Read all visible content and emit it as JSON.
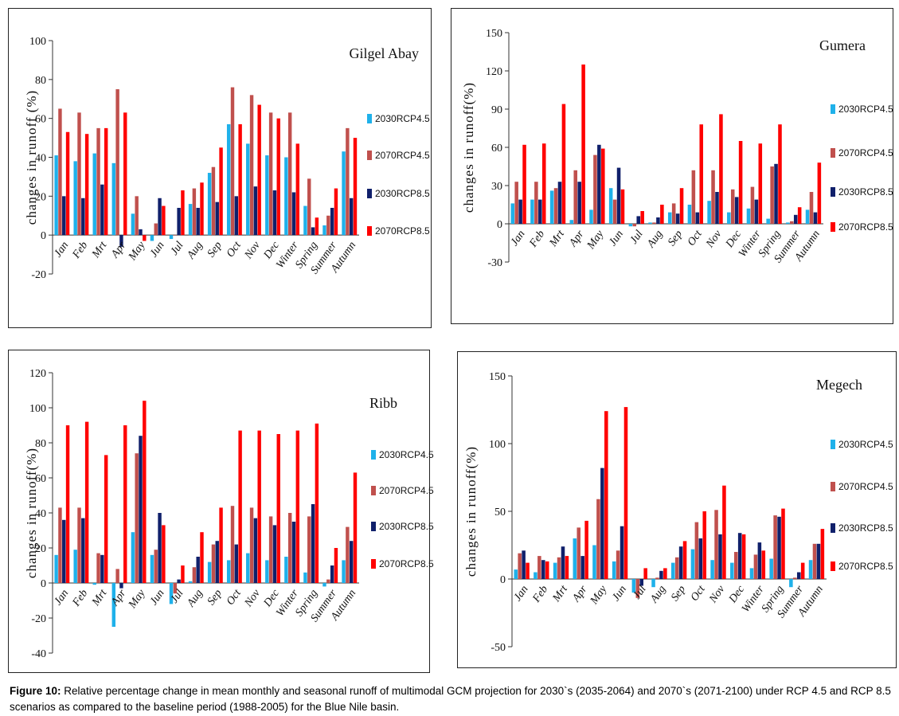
{
  "caption": {
    "label": "Figure 10:",
    "text": " Relative percentage change in mean monthly and seasonal runoff of multimodal GCM projection for 2030`s (2035-2064) and 2070`s (2071-2100) under RCP 4.5 and RCP 8.5 scenarios as compared to the baseline period (1988-2005) for the Blue Nile basin."
  },
  "colors": {
    "2030RCP4.5": "#1fb1ea",
    "2070RCP4.5": "#c0504d",
    "2030RCP8.5": "#10206b",
    "2070RCP8.5": "#ff0000"
  },
  "chart_data": [
    {
      "type": "bar",
      "title": "Gilgel Abay",
      "ylabel": "changes in runoff (%)",
      "ylim": [
        -20,
        100
      ],
      "yticks": [
        -20,
        0,
        20,
        40,
        60,
        80,
        100
      ],
      "categories": [
        "Jan",
        "Feb",
        "Mrt",
        "Apr",
        "May",
        "Jun",
        "Jul",
        "Aug",
        "Sep",
        "Oct",
        "Nov",
        "Dec",
        "Winter",
        "Spring",
        "Summer",
        "Autumn"
      ],
      "legend_position": "right",
      "series": [
        {
          "name": "2030RCP4.5",
          "values": [
            41,
            38,
            42,
            37,
            11,
            -3,
            -2,
            16,
            32,
            57,
            47,
            41,
            40,
            15,
            5,
            43
          ]
        },
        {
          "name": "2070RCP4.5",
          "values": [
            65,
            63,
            55,
            75,
            20,
            6,
            0,
            24,
            35,
            76,
            72,
            63,
            63,
            29,
            10,
            55
          ]
        },
        {
          "name": "2030RCP8.5",
          "values": [
            20,
            19,
            26,
            -6,
            3,
            19,
            14,
            14,
            17,
            20,
            25,
            23,
            22,
            4,
            14,
            19
          ]
        },
        {
          "name": "2070RCP8.5",
          "values": [
            53,
            52,
            55,
            63,
            -3,
            15,
            23,
            27,
            45,
            57,
            67,
            60,
            47,
            9,
            24,
            50
          ]
        }
      ]
    },
    {
      "type": "bar",
      "title": "Gumera",
      "ylabel": "changes in runoff(%)",
      "ylim": [
        -30,
        150
      ],
      "yticks": [
        -30,
        0,
        30,
        60,
        90,
        120,
        150
      ],
      "categories": [
        "Jan",
        "Feb",
        "Mrt",
        "Apr",
        "May",
        "Jun",
        "Jul",
        "Aug",
        "Sep",
        "Oct",
        "Nov",
        "Dec",
        "Winter",
        "Spring",
        "Summer",
        "Autumn"
      ],
      "legend_position": "right",
      "series": [
        {
          "name": "2030RCP4.5",
          "values": [
            16,
            19,
            26,
            3,
            11,
            28,
            -2,
            1,
            9,
            15,
            18,
            9,
            12,
            4,
            1,
            11
          ]
        },
        {
          "name": "2070RCP4.5",
          "values": [
            33,
            33,
            28,
            42,
            54,
            19,
            -2,
            1,
            16,
            42,
            42,
            27,
            29,
            45,
            2,
            25
          ]
        },
        {
          "name": "2030RCP8.5",
          "values": [
            19,
            19,
            33,
            33,
            62,
            44,
            6,
            5,
            8,
            9,
            25,
            21,
            19,
            47,
            7,
            9
          ]
        },
        {
          "name": "2070RCP8.5",
          "values": [
            62,
            63,
            94,
            125,
            59,
            27,
            10,
            15,
            28,
            78,
            86,
            65,
            63,
            78,
            13,
            48
          ]
        }
      ]
    },
    {
      "type": "bar",
      "title": "Ribb",
      "ylabel": "changes in runoff(%)",
      "ylim": [
        -40,
        120
      ],
      "yticks": [
        -40,
        -20,
        0,
        20,
        40,
        60,
        80,
        100,
        120
      ],
      "categories": [
        "Jan",
        "Feb",
        "Mrt",
        "Apr",
        "May",
        "Jun",
        "Jul",
        "Aug",
        "Sep",
        "Oct",
        "Nov",
        "Dec",
        "Winter",
        "Spring",
        "Summer",
        "Autumn"
      ],
      "legend_position": "right",
      "series": [
        {
          "name": "2030RCP4.5",
          "values": [
            16,
            19,
            -1,
            -25,
            29,
            16,
            -12,
            1,
            12,
            13,
            17,
            13,
            15,
            6,
            -2,
            13
          ]
        },
        {
          "name": "2070RCP4.5",
          "values": [
            43,
            43,
            17,
            8,
            74,
            19,
            -6,
            9,
            22,
            44,
            43,
            38,
            40,
            38,
            2,
            32
          ]
        },
        {
          "name": "2030RCP8.5",
          "values": [
            36,
            37,
            16,
            -3,
            84,
            40,
            2,
            15,
            24,
            22,
            37,
            33,
            35,
            45,
            10,
            24
          ]
        },
        {
          "name": "2070RCP8.5",
          "values": [
            90,
            92,
            73,
            90,
            104,
            33,
            10,
            29,
            43,
            87,
            87,
            85,
            87,
            91,
            20,
            63
          ]
        }
      ]
    },
    {
      "type": "bar",
      "title": "Megech",
      "ylabel": "changes in runoff(%)",
      "ylim": [
        -50,
        150
      ],
      "yticks": [
        -50,
        0,
        50,
        100,
        150
      ],
      "categories": [
        "Jan",
        "Feb",
        "Mrt",
        "Apr",
        "May",
        "Jun",
        "Jul",
        "Aug",
        "Sep",
        "Oct",
        "Nov",
        "Dec",
        "Winter",
        "Spring",
        "Summer",
        "Autumn"
      ],
      "legend_position": "right",
      "series": [
        {
          "name": "2030RCP4.5",
          "values": [
            7,
            5,
            12,
            30,
            25,
            13,
            -10,
            -6,
            12,
            22,
            14,
            12,
            8,
            15,
            -6,
            14
          ]
        },
        {
          "name": "2070RCP4.5",
          "values": [
            19,
            17,
            16,
            38,
            59,
            21,
            -14,
            1,
            16,
            42,
            51,
            20,
            18,
            47,
            1,
            26
          ]
        },
        {
          "name": "2030RCP8.5",
          "values": [
            21,
            14,
            24,
            17,
            82,
            39,
            -5,
            6,
            24,
            30,
            33,
            34,
            27,
            46,
            5,
            26
          ]
        },
        {
          "name": "2070RCP8.5",
          "values": [
            12,
            13,
            17,
            43,
            124,
            127,
            8,
            8,
            28,
            50,
            69,
            33,
            21,
            52,
            12,
            37
          ]
        }
      ]
    }
  ]
}
